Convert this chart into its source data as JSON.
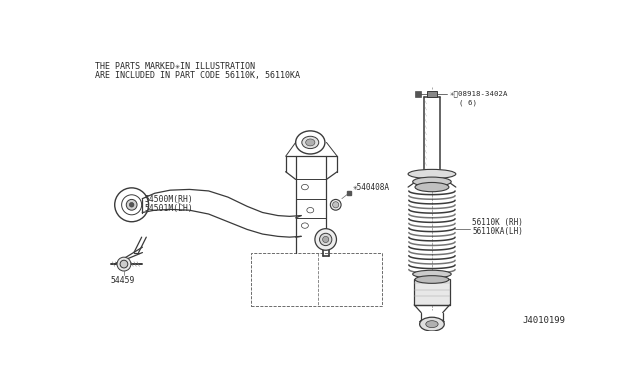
{
  "bg_color": "#ffffff",
  "fig_width": 6.4,
  "fig_height": 3.72,
  "dpi": 100,
  "header_line1": "THE PARTS MARKED✳IN ILLUSTRATION",
  "header_line2": "ARE INCLUDED IN PART CODE 56110K, 56110KA",
  "part_labels": {
    "54500M_RH": "54500M(RH)",
    "54501M_LH": "54501M(LH)",
    "540408A": "✳540408A",
    "54459": "54459",
    "56110K_RH": "56110K (RH)",
    "56110KA_LH": "56110KA(LH)",
    "08918_3402A": "✳Ⓣ08918-3402A",
    "08918_qty": "( 6)"
  },
  "diagram_id": "J4010199",
  "text_color": "#2a2a2a",
  "line_color": "#3a3a3a",
  "font_size_header": 6.0,
  "font_size_label": 5.8,
  "font_size_diagram_id": 6.5
}
